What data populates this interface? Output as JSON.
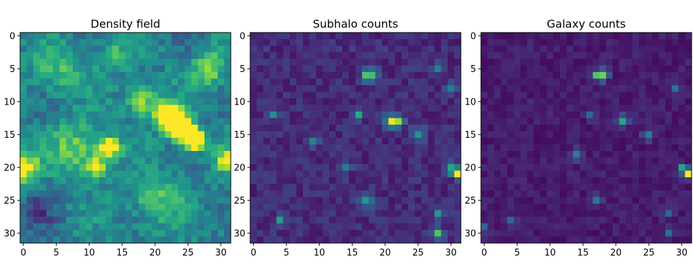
{
  "chart_data": [
    {
      "type": "heatmap",
      "title": "Density field",
      "xlim": [
        0,
        31
      ],
      "ylim": [
        31,
        0
      ],
      "xticks": [
        0,
        5,
        10,
        15,
        20,
        25,
        30
      ],
      "yticks": [
        0,
        5,
        10,
        15,
        20,
        25,
        30
      ],
      "grid_size": [
        32,
        32
      ],
      "colormap": "viridis",
      "seed": 11,
      "base": 0.34,
      "noise": 0.22,
      "features": [
        {
          "x": 22,
          "y": 12,
          "r": 1.2,
          "v": 0.9
        },
        {
          "x": 23,
          "y": 13,
          "r": 1.2,
          "v": 0.85
        },
        {
          "x": 25,
          "y": 15,
          "r": 1.1,
          "v": 0.85
        },
        {
          "x": 26,
          "y": 16,
          "r": 1.0,
          "v": 0.8
        },
        {
          "x": 24,
          "y": 14,
          "r": 1.0,
          "v": 0.75
        },
        {
          "x": 13,
          "y": 17,
          "r": 1.2,
          "v": 0.6
        },
        {
          "x": 11,
          "y": 20,
          "r": 1.0,
          "v": 0.6
        },
        {
          "x": 0,
          "y": 20,
          "r": 1.6,
          "v": 0.55
        },
        {
          "x": 31,
          "y": 19,
          "r": 1.2,
          "v": 0.55
        },
        {
          "x": 18,
          "y": 10,
          "r": 1.6,
          "v": 0.45
        },
        {
          "x": 28,
          "y": 5,
          "r": 1.8,
          "v": 0.4
        },
        {
          "x": 8,
          "y": 17,
          "r": 2.5,
          "v": 0.35
        },
        {
          "x": 20,
          "y": 25,
          "r": 2.5,
          "v": 0.3
        },
        {
          "x": 5,
          "y": 5,
          "r": 2.5,
          "v": 0.25
        },
        {
          "x": 14,
          "y": 3,
          "r": 2.0,
          "v": 0.2
        },
        {
          "x": 2,
          "y": 27,
          "r": 2.0,
          "v": -0.2
        }
      ]
    },
    {
      "type": "heatmap",
      "title": "Subhalo counts",
      "xlim": [
        0,
        31
      ],
      "ylim": [
        31,
        0
      ],
      "xticks": [
        0,
        5,
        10,
        15,
        20,
        25,
        30
      ],
      "yticks": [
        0,
        5,
        10,
        15,
        20,
        25,
        30
      ],
      "grid_size": [
        32,
        32
      ],
      "colormap": "viridis",
      "seed": 23,
      "base": 0.06,
      "noise": 0.14,
      "features": [
        {
          "x": 31,
          "y": 21,
          "r": 0.5,
          "v": 1.0
        },
        {
          "x": 30,
          "y": 20,
          "r": 0.6,
          "v": 0.5
        },
        {
          "x": 21,
          "y": 13,
          "r": 0.7,
          "v": 0.65
        },
        {
          "x": 22,
          "y": 13,
          "r": 0.6,
          "v": 0.55
        },
        {
          "x": 18,
          "y": 6,
          "r": 0.7,
          "v": 0.55
        },
        {
          "x": 17,
          "y": 6,
          "r": 0.5,
          "v": 0.45
        },
        {
          "x": 28,
          "y": 30,
          "r": 0.6,
          "v": 0.6
        },
        {
          "x": 25,
          "y": 15,
          "r": 0.7,
          "v": 0.45
        },
        {
          "x": 16,
          "y": 12,
          "r": 0.5,
          "v": 0.45
        },
        {
          "x": 3,
          "y": 12,
          "r": 0.5,
          "v": 0.4
        },
        {
          "x": 4,
          "y": 28,
          "r": 0.5,
          "v": 0.4
        },
        {
          "x": 17,
          "y": 25,
          "r": 0.8,
          "v": 0.35
        },
        {
          "x": 30,
          "y": 8,
          "r": 0.6,
          "v": 0.35
        },
        {
          "x": 28,
          "y": 27,
          "r": 0.5,
          "v": 0.4
        },
        {
          "x": 28,
          "y": 5,
          "r": 0.5,
          "v": 0.35
        },
        {
          "x": 9,
          "y": 16,
          "r": 0.6,
          "v": 0.3
        },
        {
          "x": 14,
          "y": 20,
          "r": 0.6,
          "v": 0.3
        }
      ]
    },
    {
      "type": "heatmap",
      "title": "Galaxy counts",
      "xlim": [
        0,
        31
      ],
      "ylim": [
        31,
        0
      ],
      "xticks": [
        0,
        5,
        10,
        15,
        20,
        25,
        30
      ],
      "yticks": [
        0,
        5,
        10,
        15,
        20,
        25,
        30
      ],
      "grid_size": [
        32,
        32
      ],
      "colormap": "viridis",
      "seed": 37,
      "base": 0.03,
      "noise": 0.1,
      "features": [
        {
          "x": 31,
          "y": 21,
          "r": 0.5,
          "v": 1.0
        },
        {
          "x": 30,
          "y": 20,
          "r": 0.5,
          "v": 0.45
        },
        {
          "x": 18,
          "y": 6,
          "r": 0.6,
          "v": 0.6
        },
        {
          "x": 17,
          "y": 6,
          "r": 0.5,
          "v": 0.45
        },
        {
          "x": 21,
          "y": 13,
          "r": 0.6,
          "v": 0.55
        },
        {
          "x": 14,
          "y": 18,
          "r": 0.6,
          "v": 0.35
        },
        {
          "x": 25,
          "y": 15,
          "r": 0.6,
          "v": 0.35
        },
        {
          "x": 16,
          "y": 12,
          "r": 0.5,
          "v": 0.3
        },
        {
          "x": 17,
          "y": 25,
          "r": 0.6,
          "v": 0.3
        },
        {
          "x": 4,
          "y": 28,
          "r": 0.5,
          "v": 0.3
        },
        {
          "x": 28,
          "y": 30,
          "r": 0.5,
          "v": 0.3
        },
        {
          "x": 29,
          "y": 8,
          "r": 0.5,
          "v": 0.3
        },
        {
          "x": 0,
          "y": 29,
          "r": 0.5,
          "v": 0.25
        },
        {
          "x": 28,
          "y": 27,
          "r": 0.5,
          "v": 0.3
        }
      ]
    }
  ]
}
